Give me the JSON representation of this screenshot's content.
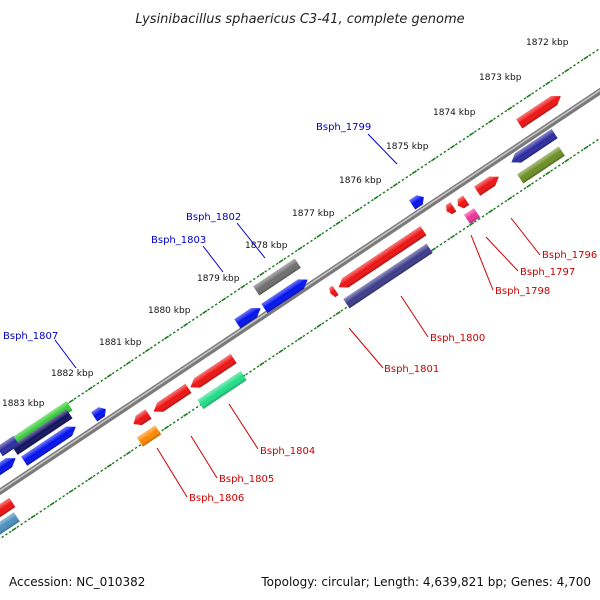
{
  "title": "Lysinibacillus sphaericus C3-41, complete genome",
  "footer": {
    "accession": "Accession: NC_010382",
    "summary": "Topology: circular; Length: 4,639,821 bp; Genes: 4,700"
  },
  "colors": {
    "backbone": "#8c8c8c",
    "tick": "#1a7a1a",
    "forward_label": "#0000cc",
    "reverse_label": "#cc0000"
  },
  "kbp_labels": [
    "1872 kbp",
    "1873 kbp",
    "1874 kbp",
    "1875 kbp",
    "1876 kbp",
    "1877 kbp",
    "1878 kbp",
    "1879 kbp",
    "1880 kbp",
    "1881 kbp",
    "1882 kbp",
    "1883 kbp"
  ],
  "forward_gene_labels": [
    "Bsph_1799",
    "Bsph_1802",
    "Bsph_1803",
    "Bsph_1807"
  ],
  "reverse_gene_labels": [
    "Bsph_1796",
    "Bsph_1797",
    "Bsph_1798",
    "Bsph_1800",
    "Bsph_1801",
    "Bsph_1804",
    "Bsph_1805",
    "Bsph_1806"
  ]
}
